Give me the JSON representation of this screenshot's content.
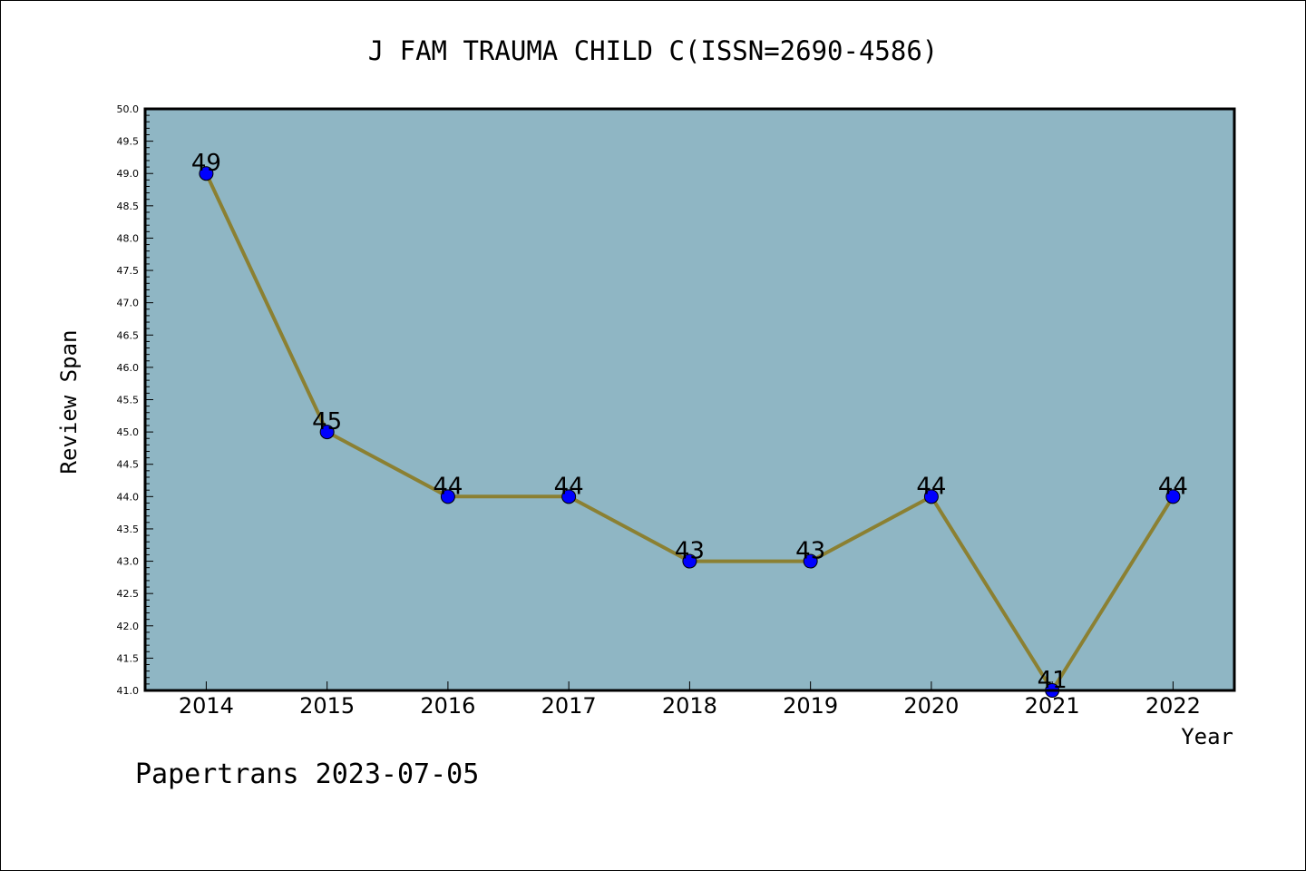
{
  "chart_data": {
    "type": "line",
    "title": "J FAM TRAUMA CHILD C(ISSN=2690-4586)",
    "xlabel": "Year",
    "ylabel": "Review Span",
    "categories": [
      "2014",
      "2015",
      "2016",
      "2017",
      "2018",
      "2019",
      "2020",
      "2021",
      "2022"
    ],
    "series": [
      {
        "values": [
          49,
          45,
          44,
          44,
          43,
          43,
          44,
          41,
          44
        ]
      }
    ],
    "data_labels": [
      "49",
      "45",
      "44",
      "44",
      "43",
      "43",
      "44",
      "41",
      "44"
    ],
    "ylim": [
      41.0,
      50.0
    ],
    "y_ticks": [
      "41.0",
      "41.5",
      "42.0",
      "42.5",
      "43.0",
      "43.5",
      "44.0",
      "44.5",
      "45.0",
      "45.5",
      "46.0",
      "46.5",
      "47.0",
      "47.5",
      "48.0",
      "48.5",
      "49.0",
      "49.5",
      "50.0"
    ],
    "grid": false,
    "colors": {
      "plot_background": "#8fb6c4",
      "line": "#8b8032",
      "marker": "#0000ff"
    }
  },
  "footer": {
    "watermark": "Papertrans 2023-07-05"
  }
}
